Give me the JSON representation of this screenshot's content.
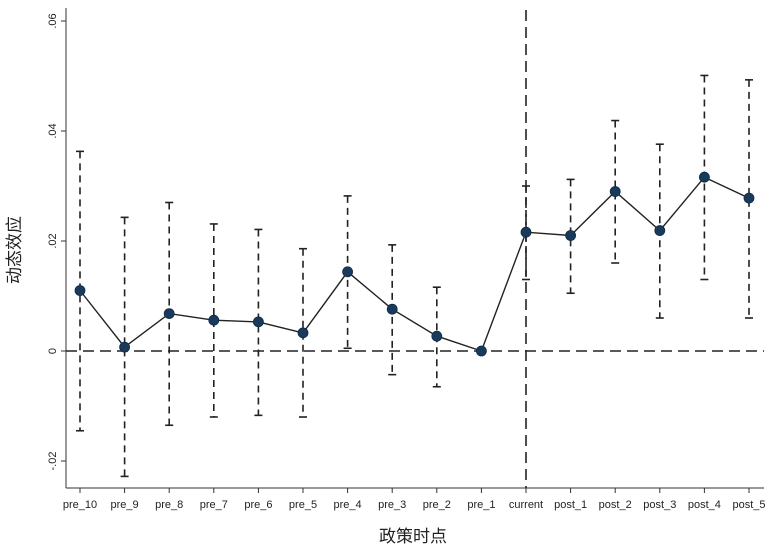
{
  "chart_data": {
    "type": "scatter",
    "xlabel": "政策时点",
    "ylabel": "动态效应",
    "categories": [
      "pre_10",
      "pre_9",
      "pre_8",
      "pre_7",
      "pre_6",
      "pre_5",
      "pre_4",
      "pre_3",
      "pre_2",
      "pre_1",
      "current",
      "post_1",
      "post_2",
      "post_3",
      "post_4",
      "post_5"
    ],
    "series": [
      {
        "values": [
          0.011,
          0.0007,
          0.0068,
          0.0056,
          0.0053,
          0.0033,
          0.0144,
          0.0076,
          0.0027,
          0.0,
          0.0216,
          0.021,
          0.029,
          0.0219,
          0.0316,
          0.0278
        ],
        "ci_low": [
          -0.0145,
          -0.0228,
          -0.0135,
          -0.012,
          -0.0117,
          -0.012,
          0.0005,
          -0.0043,
          -0.0065,
          0.0,
          0.013,
          0.0105,
          0.016,
          0.006,
          0.013,
          0.006
        ],
        "ci_high": [
          0.0363,
          0.0243,
          0.027,
          0.0231,
          0.0221,
          0.0186,
          0.0282,
          0.0193,
          0.0116,
          0.0,
          0.03,
          0.0312,
          0.0419,
          0.0376,
          0.0501,
          0.0493
        ]
      }
    ],
    "yticks": [
      -0.02,
      0,
      0.02,
      0.04,
      0.06
    ],
    "ytick_labels": [
      "-.02",
      "0",
      ".02",
      ".04",
      ".06"
    ],
    "ylim": [
      -0.025,
      0.0615
    ],
    "reference_hline": 0,
    "reference_vline_category": "current",
    "grid": false,
    "colors": {
      "marker": "#1a3a5c",
      "line": "#222222",
      "ci": "#222222"
    }
  }
}
